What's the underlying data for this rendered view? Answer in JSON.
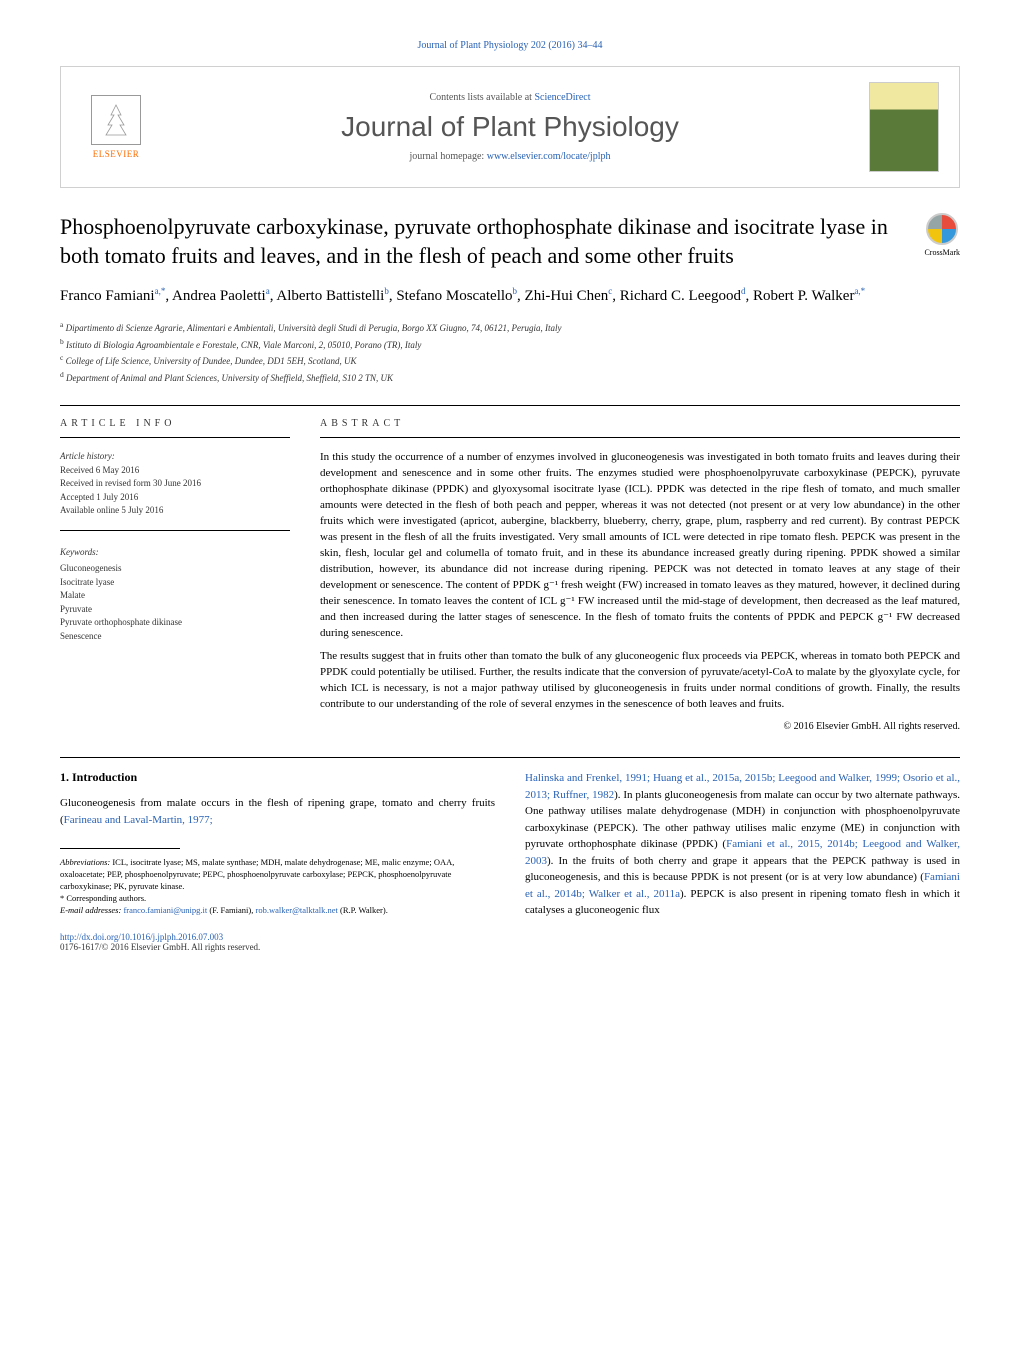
{
  "header": {
    "citation": "Journal of Plant Physiology 202 (2016) 34–44",
    "contents_prefix": "Contents lists available at ",
    "contents_link": "ScienceDirect",
    "journal_name": "Journal of Plant Physiology",
    "homepage_prefix": "journal homepage: ",
    "homepage_url": "www.elsevier.com/locate/jplph",
    "publisher": "ELSEVIER",
    "cover_title": "JOURNAL OF PLANT PHYSIOLOGY"
  },
  "crossmark": "CrossMark",
  "title": "Phosphoenolpyruvate carboxykinase, pyruvate orthophosphate dikinase and isocitrate lyase in both tomato fruits and leaves, and in the flesh of peach and some other fruits",
  "authors_html": "Franco Famiani<sup>a,*</sup>, Andrea Paoletti<sup>a</sup>, Alberto Battistelli<sup>b</sup>, Stefano Moscatello<sup>b</sup>, Zhi-Hui Chen<sup>c</sup>, Richard C. Leegood<sup>d</sup>, Robert P. Walker<sup>a,*</sup>",
  "affiliations": {
    "a": "Dipartimento di Scienze Agrarie, Alimentari e Ambientali, Università degli Studi di Perugia, Borgo XX Giugno, 74, 06121, Perugia, Italy",
    "b": "Istituto di Biologia Agroambientale e Forestale, CNR, Viale Marconi, 2, 05010, Porano (TR), Italy",
    "c": "College of Life Science, University of Dundee, Dundee, DD1 5EH, Scotland, UK",
    "d": "Department of Animal and Plant Sciences, University of Sheffield, Sheffield, S10 2 TN, UK"
  },
  "article_info": {
    "heading": "ARTICLE INFO",
    "history_label": "Article history:",
    "received": "Received 6 May 2016",
    "revised": "Received in revised form 30 June 2016",
    "accepted": "Accepted 1 July 2016",
    "online": "Available online 5 July 2016",
    "keywords_label": "Keywords:",
    "keywords": [
      "Gluconeogenesis",
      "Isocitrate lyase",
      "Malate",
      "Pyruvate",
      "Pyruvate orthophosphate dikinase",
      "Senescence"
    ]
  },
  "abstract": {
    "heading": "ABSTRACT",
    "p1": "In this study the occurrence of a number of enzymes involved in gluconeogenesis was investigated in both tomato fruits and leaves during their development and senescence and in some other fruits. The enzymes studied were phosphoenolpyruvate carboxykinase (PEPCK), pyruvate orthophosphate dikinase (PPDK) and glyoxysomal isocitrate lyase (ICL). PPDK was detected in the ripe flesh of tomato, and much smaller amounts were detected in the flesh of both peach and pepper, whereas it was not detected (not present or at very low abundance) in the other fruits which were investigated (apricot, aubergine, blackberry, blueberry, cherry, grape, plum, raspberry and red current). By contrast PEPCK was present in the flesh of all the fruits investigated. Very small amounts of ICL were detected in ripe tomato flesh. PEPCK was present in the skin, flesh, locular gel and columella of tomato fruit, and in these its abundance increased greatly during ripening. PPDK showed a similar distribution, however, its abundance did not increase during ripening. PEPCK was not detected in tomato leaves at any stage of their development or senescence. The content of PPDK g⁻¹ fresh weight (FW) increased in tomato leaves as they matured, however, it declined during their senescence. In tomato leaves the content of ICL g⁻¹ FW increased until the mid-stage of development, then decreased as the leaf matured, and then increased during the latter stages of senescence. In the flesh of tomato fruits the contents of PPDK and PEPCK g⁻¹ FW decreased during senescence.",
    "p2": "The results suggest that in fruits other than tomato the bulk of any gluconeogenic flux proceeds via PEPCK, whereas in tomato both PEPCK and PPDK could potentially be utilised. Further, the results indicate that the conversion of pyruvate/acetyl-CoA to malate by the glyoxylate cycle, for which ICL is necessary, is not a major pathway utilised by gluconeogenesis in fruits under normal conditions of growth. Finally, the results contribute to our understanding of the role of several enzymes in the senescence of both leaves and fruits.",
    "copyright": "© 2016 Elsevier GmbH. All rights reserved."
  },
  "intro": {
    "heading": "1. Introduction",
    "col1": "Gluconeogenesis from malate occurs in the flesh of ripening grape, tomato and cherry fruits (Farineau and Laval-Martin, 1977;",
    "col2": "Halinska and Frenkel, 1991; Huang et al., 2015a, 2015b; Leegood and Walker, 1999; Osorio et al., 2013; Ruffner, 1982). In plants gluconeogenesis from malate can occur by two alternate pathways. One pathway utilises malate dehydrogenase (MDH) in conjunction with phosphoenolpyruvate carboxykinase (PEPCK). The other pathway utilises malic enzyme (ME) in conjunction with pyruvate orthophosphate dikinase (PPDK) (Famiani et al., 2015, 2014b; Leegood and Walker, 2003). In the fruits of both cherry and grape it appears that the PEPCK pathway is used in gluconeogenesis, and this is because PPDK is not present (or is at very low abundance) (Famiani et al., 2014b; Walker et al., 2011a). PEPCK is also present in ripening tomato flesh in which it catalyses a gluconeogenic flux"
  },
  "footnotes": {
    "abbrev_label": "Abbreviations:",
    "abbrev_text": " ICL, isocitrate lyase; MS, malate synthase; MDH, malate dehydrogenase; ME, malic enzyme; OAA, oxaloacetate; PEP, phosphoenolpyruvate; PEPC, phosphoenolpyruvate carboxylase; PEPCK, phosphoenolpyruvate carboxykinase; PK, pyruvate kinase.",
    "corresp": "* Corresponding authors.",
    "email_label": "E-mail addresses:",
    "email1": "franco.famiani@unipg.it",
    "email1_name": " (F. Famiani), ",
    "email2": "rob.walker@talktalk.net",
    "email2_name": " (R.P. Walker)."
  },
  "doi": {
    "url": "http://dx.doi.org/10.1016/j.jplph.2016.07.003",
    "issn": "0176-1617/© 2016 Elsevier GmbH. All rights reserved."
  },
  "colors": {
    "link": "#2962b4",
    "elsevier_orange": "#ff6b00",
    "text": "#000000",
    "muted": "#555555"
  }
}
